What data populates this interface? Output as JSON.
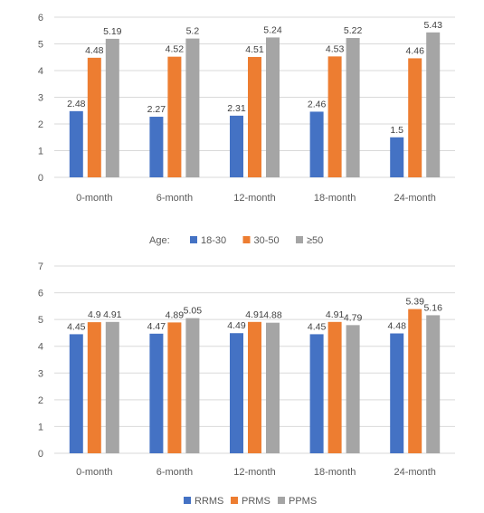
{
  "chart_data": [
    {
      "type": "bar",
      "categories": [
        "0-month",
        "6-month",
        "12-month",
        "18-month",
        "24-month"
      ],
      "series": [
        {
          "name": "18-30",
          "color": "#4472c4",
          "values": [
            2.48,
            2.27,
            2.31,
            2.46,
            1.5
          ]
        },
        {
          "name": "30-50",
          "color": "#ed7d31",
          "values": [
            4.48,
            4.52,
            4.51,
            4.53,
            4.46
          ]
        },
        {
          "name": "≥50",
          "color": "#a5a5a5",
          "values": [
            5.19,
            5.2,
            5.24,
            5.22,
            5.43
          ]
        }
      ],
      "data_labels": [
        [
          "2.48",
          "2.27",
          "2.31",
          "2.46",
          "1.5"
        ],
        [
          "4.48",
          "4.52",
          "4.51",
          "4.53",
          "4.46"
        ],
        [
          "5.19",
          "5.2",
          "5.24",
          "5.22",
          "5.43"
        ]
      ],
      "legend_title": "Age:",
      "legend_position": "bottom",
      "ylim": [
        0,
        6
      ],
      "yticks": [
        "0",
        "1",
        "2",
        "3",
        "4",
        "5",
        "6"
      ],
      "grid": true
    },
    {
      "type": "bar",
      "categories": [
        "0-month",
        "6-month",
        "12-month",
        "18-month",
        "24-month"
      ],
      "series": [
        {
          "name": "RRMS",
          "color": "#4472c4",
          "values": [
            4.45,
            4.47,
            4.49,
            4.45,
            4.48
          ]
        },
        {
          "name": "PRMS",
          "color": "#ed7d31",
          "values": [
            4.9,
            4.89,
            4.91,
            4.91,
            5.39
          ]
        },
        {
          "name": "PPMS",
          "color": "#a5a5a5",
          "values": [
            4.91,
            5.05,
            4.88,
            4.79,
            5.16
          ]
        }
      ],
      "data_labels": [
        [
          "4.45",
          "4.47",
          "4.49",
          "4.45",
          "4.48"
        ],
        [
          "4.9",
          "4.89",
          "4.91",
          "4.91",
          "5.39"
        ],
        [
          "4.91",
          "5.05",
          "4.88",
          "4.79",
          "5.16"
        ]
      ],
      "legend_title": "",
      "legend_position": "bottom",
      "ylim": [
        0,
        7
      ],
      "yticks": [
        "0",
        "1",
        "2",
        "3",
        "4",
        "5",
        "6",
        "7"
      ],
      "grid": true
    }
  ]
}
